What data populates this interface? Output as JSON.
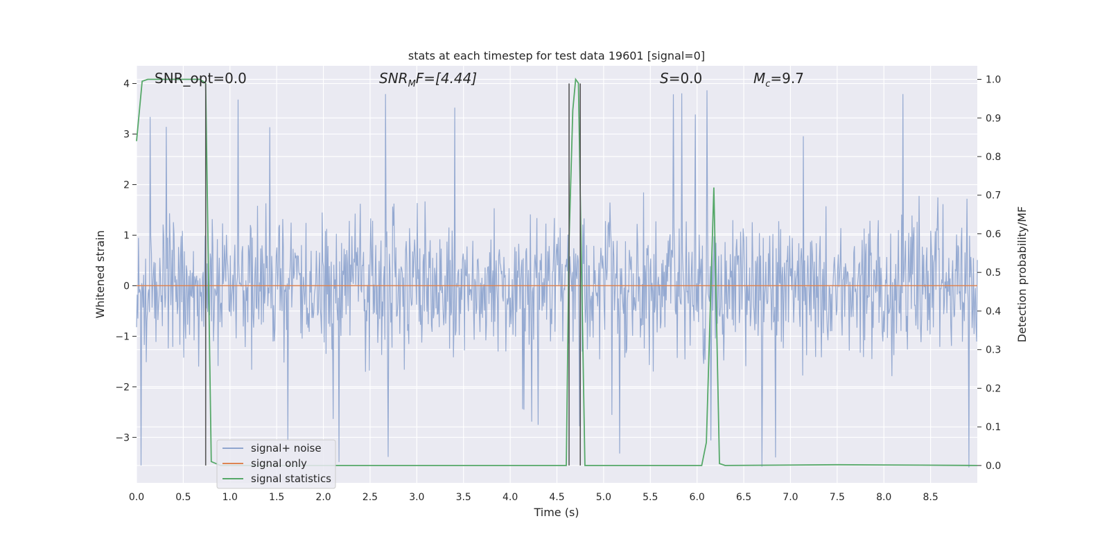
{
  "chart_data": {
    "type": "line",
    "title": "stats at each timestep for test data 19601 [signal=0]",
    "xlabel": "Time (s)",
    "ylabel": "Whitened strain",
    "y2label": "Detection probability/MF",
    "xlim": [
      0.0,
      9.0
    ],
    "ylim": [
      -3.9,
      4.35
    ],
    "y2lim": [
      -0.045,
      1.035
    ],
    "x_ticks": [
      "0.0",
      "0.5",
      "1.0",
      "1.5",
      "2.0",
      "2.5",
      "3.0",
      "3.5",
      "4.0",
      "4.5",
      "5.0",
      "5.5",
      "6.0",
      "6.5",
      "7.0",
      "7.5",
      "8.0",
      "8.5"
    ],
    "y_ticks": [
      "4",
      "3",
      "2",
      "1",
      "0",
      "−1",
      "−2",
      "−3"
    ],
    "y2_ticks": [
      "1.0",
      "0.9",
      "0.8",
      "0.7",
      "0.6",
      "0.5",
      "0.4",
      "0.3",
      "0.2",
      "0.1",
      "0.0"
    ],
    "grid": true,
    "legend_position": "lower-left",
    "annotations": {
      "snr_opt": "SNR_opt=0.0",
      "snr_mf_name": "SNR",
      "snr_mf_sub": "M",
      "snr_mf_rest": "F=[4.44]",
      "s_name": "S",
      "s_rest": "=0.0",
      "mc_name": "M",
      "mc_sub": "c",
      "mc_rest": "=9.7"
    },
    "series": [
      {
        "name": "signal+ noise",
        "color": "#8fa5cf",
        "note": "whitened strain noise, roughly within ±2.3 with spikes to ~4",
        "envelope": {
          "typical_max": 1.8,
          "typical_min": -1.6,
          "spike_max": 4.0,
          "spike_min": -3.6
        }
      },
      {
        "name": "signal only",
        "color": "#dd8452",
        "x": [
          0.0,
          9.0
        ],
        "y": [
          0.0,
          0.0
        ]
      },
      {
        "name": "signal statistics",
        "color": "#55a868",
        "axis": "right",
        "x": [
          0.0,
          0.06,
          0.12,
          0.5,
          0.68,
          0.74,
          0.8,
          0.9,
          4.55,
          4.6,
          4.63,
          4.67,
          4.7,
          4.73,
          4.76,
          4.8,
          4.85,
          5.0,
          6.05,
          6.1,
          6.18,
          6.24,
          6.3,
          7.5,
          8.4,
          9.0
        ],
        "y": [
          0.84,
          0.995,
          1.0,
          1.0,
          1.0,
          0.99,
          0.01,
          0.0,
          0.0,
          0.0,
          0.58,
          0.92,
          1.0,
          0.99,
          0.56,
          0.0,
          0.0,
          0.0,
          0.0,
          0.06,
          0.72,
          0.005,
          0.0,
          0.002,
          0.001,
          0.0
        ]
      }
    ],
    "vertical_markers": {
      "color": "#555555",
      "x": [
        0.74,
        4.63,
        4.75
      ],
      "y_top": [
        4.0,
        4.0,
        4.0
      ]
    }
  }
}
